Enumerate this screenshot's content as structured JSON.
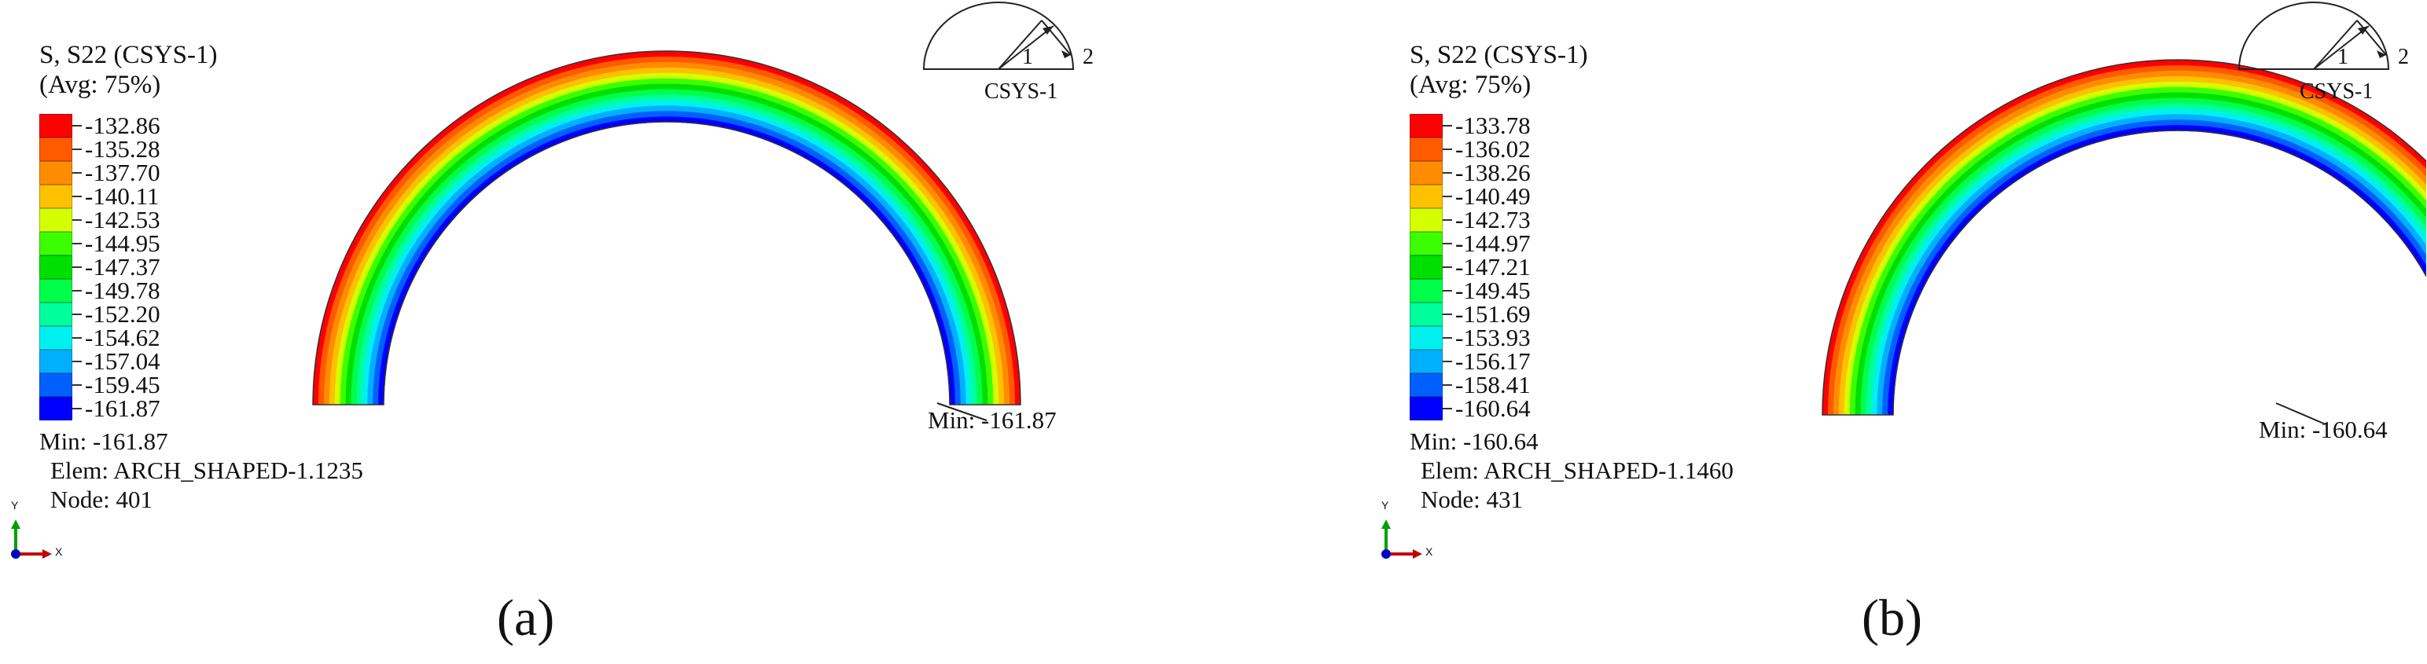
{
  "panels": [
    {
      "id": "a",
      "title": "S, S22 (CSYS-1)",
      "subtitle": "(Avg: 75%)",
      "legend": {
        "values": [
          "-132.86",
          "-135.28",
          "-137.70",
          "-140.11",
          "-142.53",
          "-144.95",
          "-147.37",
          "-149.78",
          "-152.20",
          "-154.62",
          "-157.04",
          "-159.45",
          "-161.87"
        ],
        "colors": [
          "#ff0000",
          "#ff5a00",
          "#ff8c00",
          "#ffc000",
          "#d4ff00",
          "#3cff00",
          "#00e000",
          "#00ff4a",
          "#00ff9c",
          "#00f0f0",
          "#00b0ff",
          "#0060ff",
          "#0000ff"
        ]
      },
      "min_text": "Min: -161.87",
      "elem_text": "Elem: ARCH_SHAPED-1.1235",
      "node_text": "Node: 401",
      "min_marker_text": "Min: -161.87",
      "csys_label": "CSYS-1",
      "csys_axis1": "1",
      "csys_axis2": "2",
      "triad_y": "Y",
      "triad_x": "X",
      "letter": "(a)"
    },
    {
      "id": "b",
      "title": "S, S22 (CSYS-1)",
      "subtitle": "(Avg: 75%)",
      "legend": {
        "values": [
          "-133.78",
          "-136.02",
          "-138.26",
          "-140.49",
          "-142.73",
          "-144.97",
          "-147.21",
          "-149.45",
          "-151.69",
          "-153.93",
          "-156.17",
          "-158.41",
          "-160.64"
        ],
        "colors": [
          "#ff0000",
          "#ff5a00",
          "#ff8c00",
          "#ffc000",
          "#d4ff00",
          "#3cff00",
          "#00e000",
          "#00ff4a",
          "#00ff9c",
          "#00f0f0",
          "#00b0ff",
          "#0060ff",
          "#0000ff"
        ]
      },
      "min_text": "Min: -160.64",
      "elem_text": "Elem: ARCH_SHAPED-1.1460",
      "node_text": "Node: 431",
      "min_marker_text": "Min: -160.64",
      "csys_label": "CSYS-1",
      "csys_axis1": "1",
      "csys_axis2": "2",
      "triad_y": "Y",
      "triad_x": "X",
      "letter": "(b)"
    }
  ],
  "arch_band_colors": [
    "#ff0000",
    "#ff5a00",
    "#ff8c00",
    "#ffc000",
    "#d4ff00",
    "#3cff00",
    "#00e000",
    "#00ff4a",
    "#00ff9c",
    "#00f0f0",
    "#00b0ff",
    "#0060ff",
    "#0000ff"
  ]
}
